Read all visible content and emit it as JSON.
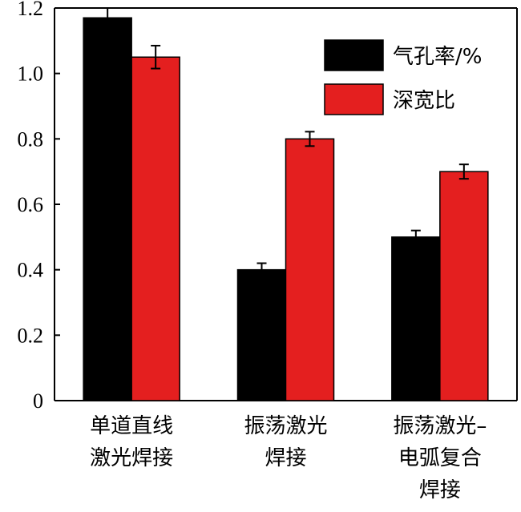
{
  "chart_data": {
    "type": "bar",
    "categories": [
      [
        "单道直线",
        "激光焊接"
      ],
      [
        "振荡激光",
        "焊接"
      ],
      [
        "振荡激光–",
        "电弧复合",
        "焊接"
      ]
    ],
    "series": [
      {
        "name": "气孔率/%",
        "color": "#000000",
        "values": [
          1.17,
          0.4,
          0.5
        ],
        "errors": [
          0.03,
          0.02,
          0.02
        ]
      },
      {
        "name": "深宽比",
        "color": "#e41f1f",
        "values": [
          1.05,
          0.8,
          0.7
        ],
        "errors": [
          0.035,
          0.022,
          0.022
        ]
      }
    ],
    "ylim": [
      0,
      1.2
    ],
    "yticks": [
      "0",
      "0.2",
      "0.4",
      "0.6",
      "0.8",
      "1.0",
      "1.2"
    ],
    "xlabel": "",
    "ylabel": "",
    "title": "",
    "legend_position": "top-right",
    "grid": false
  }
}
